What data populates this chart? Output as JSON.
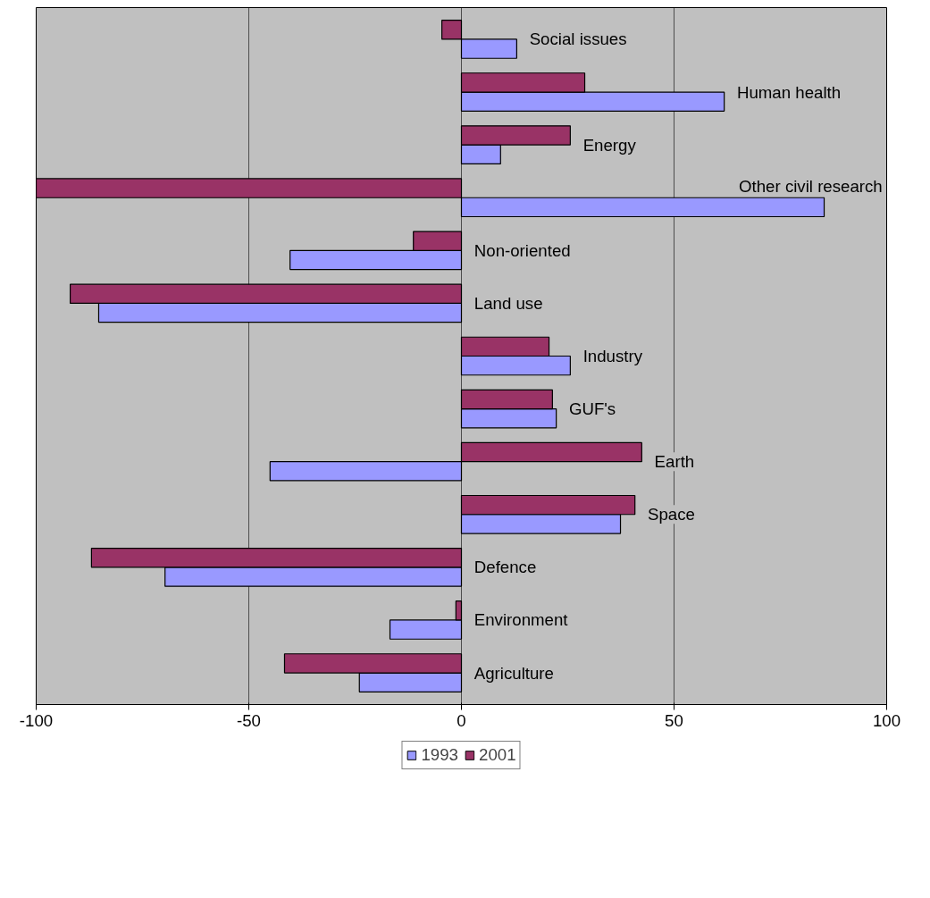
{
  "chart_data": {
    "type": "bar",
    "orientation": "horizontal",
    "categories": [
      "Social issues",
      "Human health",
      "Energy",
      "Other civil research",
      "Non-oriented",
      "Land use",
      "Industry",
      "GUF's",
      "Earth",
      "Space",
      "Defence",
      "Environment",
      "Agriculture"
    ],
    "series": [
      {
        "name": "1993",
        "color": "#9999ff",
        "values": [
          13,
          61.8,
          9.2,
          85.3,
          -40.3,
          -85.3,
          25.6,
          22.3,
          -45,
          37.4,
          -69.7,
          -16.8,
          -24
        ]
      },
      {
        "name": "2001",
        "color": "#993366",
        "values": [
          -4.6,
          29,
          25.6,
          -100,
          -11.3,
          -92,
          20.6,
          21.4,
          42.4,
          40.8,
          -87,
          -1.3,
          -41.6
        ]
      }
    ],
    "xlim": [
      -100,
      100
    ],
    "xticks": [
      -100,
      -50,
      0,
      50,
      100
    ],
    "grid": "x",
    "legend": "bottom"
  }
}
